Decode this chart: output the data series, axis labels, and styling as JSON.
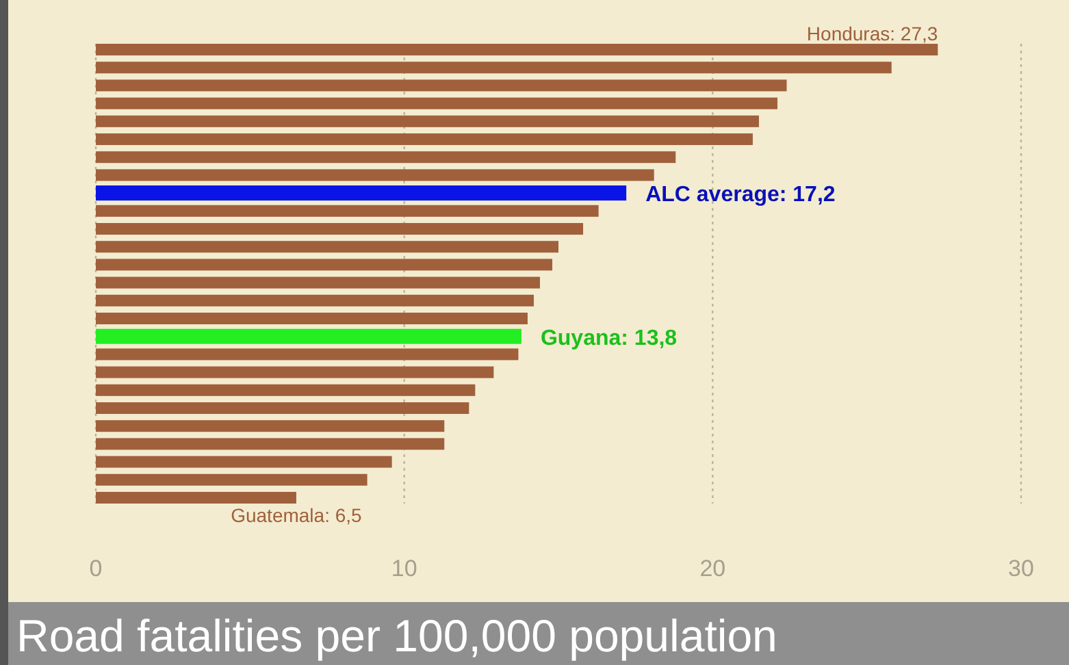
{
  "chart_data": {
    "type": "bar",
    "orientation": "horizontal",
    "title": "Road fatalities per 100,000 population",
    "categories": [
      null,
      null,
      null,
      null,
      null,
      null,
      null,
      null,
      null,
      null,
      null,
      null,
      null,
      null,
      null,
      null,
      null,
      null,
      null,
      null,
      null,
      null,
      null,
      null,
      null,
      null
    ],
    "values": [
      27.3,
      25.8,
      22.4,
      22.1,
      21.5,
      21.3,
      18.8,
      18.1,
      17.2,
      16.3,
      15.8,
      15.0,
      14.8,
      14.4,
      14.2,
      14.0,
      13.8,
      13.7,
      12.9,
      12.3,
      12.1,
      11.3,
      11.3,
      9.6,
      8.8,
      6.5
    ],
    "colors": [
      "#a0603c",
      "#a0603c",
      "#a0603c",
      "#a0603c",
      "#a0603c",
      "#a0603c",
      "#a0603c",
      "#a0603c",
      "#0a14e6",
      "#a0603c",
      "#a0603c",
      "#a0603c",
      "#a0603c",
      "#a0603c",
      "#a0603c",
      "#a0603c",
      "#22ee22",
      "#a0603c",
      "#a0603c",
      "#a0603c",
      "#a0603c",
      "#a0603c",
      "#a0603c",
      "#a0603c",
      "#a0603c",
      "#a0603c"
    ],
    "value_labels": [
      "Honduras: 27,3",
      null,
      null,
      null,
      null,
      null,
      null,
      null,
      "ALC average: 17,2",
      null,
      null,
      null,
      null,
      null,
      null,
      null,
      "Guyana: 13,8",
      null,
      null,
      null,
      null,
      null,
      null,
      null,
      null,
      "Guatemala: 6,5"
    ],
    "xlim": [
      0,
      30
    ],
    "xticks": [
      0,
      10,
      20,
      30
    ],
    "grid": "x"
  }
}
